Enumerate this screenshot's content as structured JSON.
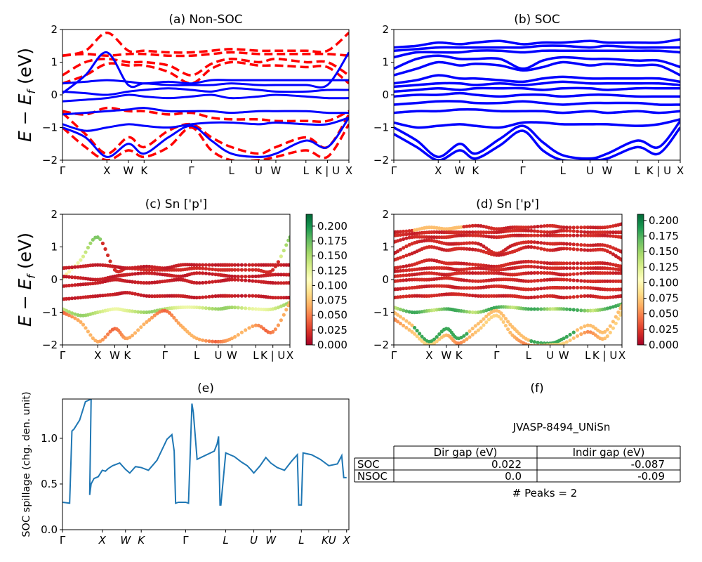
{
  "panels": {
    "a": {
      "title": "(a) Non-SOC",
      "ylabel": "E − E",
      "ylabel_sub": "f",
      "ylabel_tail": " (eV)",
      "yticks": [
        "2",
        "1",
        "0",
        "−1",
        "−2"
      ],
      "kpoints": [
        "Γ",
        "X",
        "W",
        "K",
        "Γ",
        "L",
        "U",
        "W",
        "L",
        "K | U",
        "X"
      ]
    },
    "b": {
      "title": "(b) SOC",
      "yticks": [
        "2",
        "1",
        "0",
        "−1",
        "−2"
      ],
      "kpoints": [
        "Γ",
        "X",
        "W",
        "K",
        "Γ",
        "L",
        "U",
        "W",
        "L",
        "K | U",
        "X"
      ]
    },
    "c": {
      "title": "(c)  Sn ['p']",
      "ylabel": "E − E",
      "ylabel_sub": "f",
      "ylabel_tail": " (eV)",
      "yticks": [
        "2",
        "1",
        "0",
        "−1",
        "−2"
      ],
      "kpoints": [
        "Γ",
        "X",
        "W",
        "K",
        "Γ",
        "L",
        "U",
        "W",
        "L",
        "K | U",
        "X"
      ],
      "colorbar_ticks": [
        "0.200",
        "0.175",
        "0.150",
        "0.125",
        "0.100",
        "0.075",
        "0.050",
        "0.025",
        "0.000"
      ]
    },
    "d": {
      "title": "(d) Sn ['p']",
      "yticks": [
        "2",
        "1",
        "0",
        "−1",
        "−2"
      ],
      "kpoints": [
        "Γ",
        "X",
        "W",
        "K",
        "Γ",
        "L",
        "U",
        "W",
        "L",
        "K | U",
        "X"
      ],
      "colorbar_ticks": [
        "0.200",
        "0.175",
        "0.150",
        "0.125",
        "0.100",
        "0.075",
        "0.050",
        "0.025",
        "0.000"
      ]
    },
    "e": {
      "title": "(e)",
      "ylabel": "SOC spillage (chg. den. unit)",
      "yticks": [
        "0.0",
        "0.5",
        "1.0"
      ],
      "kpoints": [
        "Γ",
        "X",
        "W",
        "K",
        "Γ",
        "L",
        "U",
        "W",
        "L",
        "KU",
        "X"
      ]
    },
    "f": {
      "title": "(f)",
      "material": "JVASP-8494_UNiSn",
      "table": {
        "headers": [
          "Dir gap (eV)",
          "Indir gap (eV)"
        ],
        "rows": [
          {
            "label": "SOC",
            "dir": "0.022",
            "indir": "-0.087"
          },
          {
            "label": "NSOC",
            "dir": "0.0",
            "indir": "-0.09"
          }
        ]
      },
      "peaks": "# Peaks = 2"
    }
  },
  "colors": {
    "nonsoc": "#ff0000",
    "soc": "#0000ff",
    "spillage": "#1f77b4",
    "cmap": [
      "#a50026",
      "#d73027",
      "#f46d43",
      "#fdae61",
      "#fee08b",
      "#ffffbf",
      "#d9ef8b",
      "#a6d96a",
      "#66bd63",
      "#1a9850",
      "#006837"
    ]
  },
  "chart_data": [
    {
      "type": "line",
      "title": "(a) Non-SOC",
      "ylabel": "E − E_f (eV)",
      "ylim": [
        -2,
        2
      ],
      "x_ticks": [
        "Γ",
        "X",
        "W",
        "K",
        "Γ",
        "L",
        "U",
        "W",
        "L",
        "K | U",
        "X"
      ],
      "x_tick_pos": [
        0,
        0.155,
        0.23,
        0.285,
        0.45,
        0.59,
        0.685,
        0.745,
        0.85,
        0.925,
        1.0
      ],
      "series": [
        {
          "style": "dashed",
          "color": "#ff0000",
          "x": [
            0,
            0.08,
            0.155,
            0.23,
            0.285,
            0.37,
            0.45,
            0.52,
            0.59,
            0.685,
            0.745,
            0.85,
            0.925,
            1.0
          ],
          "y": [
            1.2,
            1.35,
            1.9,
            1.35,
            1.35,
            1.3,
            1.3,
            1.35,
            1.4,
            1.35,
            1.35,
            1.35,
            1.35,
            1.9
          ]
        },
        {
          "style": "dashed",
          "color": "#ff0000",
          "x": [
            0,
            0.08,
            0.155,
            0.23,
            0.285,
            0.37,
            0.45,
            0.52,
            0.59,
            0.685,
            0.745,
            0.85,
            0.925,
            1.0
          ],
          "y": [
            1.2,
            1.25,
            1.2,
            1.25,
            1.25,
            1.2,
            1.2,
            1.25,
            1.3,
            1.25,
            1.25,
            1.25,
            1.25,
            1.2
          ]
        },
        {
          "style": "dashed",
          "color": "#ff0000",
          "x": [
            0,
            0.08,
            0.155,
            0.23,
            0.285,
            0.37,
            0.45,
            0.52,
            0.59,
            0.685,
            0.745,
            0.85,
            0.925,
            1.0
          ],
          "y": [
            0.6,
            1.0,
            1.1,
            1.0,
            1.0,
            0.9,
            0.6,
            0.95,
            1.1,
            1.0,
            1.1,
            1.0,
            1.0,
            0.6
          ]
        },
        {
          "style": "dashed",
          "color": "#ff0000",
          "x": [
            0,
            0.08,
            0.155,
            0.23,
            0.285,
            0.37,
            0.45,
            0.52,
            0.59,
            0.685,
            0.745,
            0.85,
            0.925,
            1.0
          ],
          "y": [
            0.35,
            0.6,
            0.95,
            0.9,
            0.9,
            0.7,
            0.35,
            0.8,
            1.0,
            0.9,
            0.9,
            0.85,
            0.85,
            0.35
          ]
        },
        {
          "style": "dashed",
          "color": "#ff0000",
          "x": [
            0,
            0.08,
            0.155,
            0.23,
            0.285,
            0.37,
            0.45,
            0.52,
            0.59,
            0.685,
            0.745,
            0.85,
            0.925,
            1.0
          ],
          "y": [
            -0.5,
            -0.6,
            -0.4,
            -0.5,
            -0.5,
            -0.6,
            -0.55,
            -0.7,
            -0.75,
            -0.75,
            -0.8,
            -0.8,
            -0.8,
            -0.5
          ]
        },
        {
          "style": "dashed",
          "color": "#ff0000",
          "x": [
            0,
            0.08,
            0.155,
            0.23,
            0.285,
            0.37,
            0.45,
            0.52,
            0.59,
            0.685,
            0.745,
            0.85,
            0.925,
            1.0
          ],
          "y": [
            -0.55,
            -1.2,
            -1.8,
            -1.3,
            -1.6,
            -1.1,
            -0.9,
            -1.3,
            -1.6,
            -1.8,
            -1.6,
            -1.3,
            -1.6,
            -0.6
          ]
        },
        {
          "style": "dashed",
          "color": "#ff0000",
          "x": [
            0,
            0.08,
            0.155,
            0.23,
            0.285,
            0.37,
            0.45,
            0.52,
            0.59,
            0.685,
            0.745,
            0.85,
            0.925,
            1.0
          ],
          "y": [
            -1.0,
            -1.6,
            -2.0,
            -1.7,
            -1.9,
            -1.6,
            -1.0,
            -1.7,
            -2.0,
            -2.0,
            -1.9,
            -1.7,
            -1.9,
            -0.9
          ]
        },
        {
          "style": "solid",
          "color": "#0000ff",
          "x": [
            0,
            0.08,
            0.155,
            0.23,
            0.285,
            0.37,
            0.45,
            0.52,
            0.59,
            0.685,
            0.745,
            0.85,
            0.925,
            1.0
          ],
          "y": [
            0.05,
            0.6,
            1.3,
            0.3,
            0.35,
            0.3,
            0.3,
            0.3,
            0.35,
            0.3,
            0.3,
            0.3,
            0.3,
            1.3
          ]
        },
        {
          "style": "solid",
          "color": "#0000ff",
          "x": [
            0,
            0.08,
            0.155,
            0.23,
            0.285,
            0.37,
            0.45,
            0.52,
            0.59,
            0.685,
            0.745,
            0.85,
            0.925,
            1.0
          ],
          "y": [
            0.35,
            0.4,
            0.45,
            0.4,
            0.35,
            0.4,
            0.35,
            0.45,
            0.45,
            0.45,
            0.45,
            0.45,
            0.45,
            0.45
          ]
        },
        {
          "style": "solid",
          "color": "#0000ff",
          "x": [
            0,
            0.08,
            0.155,
            0.23,
            0.285,
            0.37,
            0.45,
            0.52,
            0.59,
            0.685,
            0.745,
            0.85,
            0.925,
            1.0
          ],
          "y": [
            0.1,
            0.05,
            0.0,
            0.1,
            0.15,
            0.2,
            0.15,
            0.1,
            0.2,
            0.15,
            0.1,
            0.1,
            0.15,
            0.15
          ]
        },
        {
          "style": "solid",
          "color": "#0000ff",
          "x": [
            0,
            0.08,
            0.155,
            0.23,
            0.285,
            0.37,
            0.45,
            0.52,
            0.59,
            0.685,
            0.745,
            0.85,
            0.925,
            1.0
          ],
          "y": [
            -0.2,
            -0.15,
            -0.1,
            0.0,
            -0.05,
            -0.1,
            -0.05,
            0.0,
            -0.1,
            -0.05,
            0.0,
            -0.05,
            -0.1,
            -0.1
          ]
        },
        {
          "style": "solid",
          "color": "#0000ff",
          "x": [
            0,
            0.08,
            0.155,
            0.23,
            0.285,
            0.37,
            0.45,
            0.52,
            0.59,
            0.685,
            0.745,
            0.85,
            0.925,
            1.0
          ],
          "y": [
            -0.6,
            -0.55,
            -0.5,
            -0.45,
            -0.4,
            -0.5,
            -0.5,
            -0.5,
            -0.55,
            -0.5,
            -0.5,
            -0.5,
            -0.55,
            -0.55
          ]
        },
        {
          "style": "solid",
          "color": "#0000ff",
          "x": [
            0,
            0.08,
            0.155,
            0.23,
            0.285,
            0.37,
            0.45,
            0.52,
            0.59,
            0.685,
            0.745,
            0.85,
            0.925,
            1.0
          ],
          "y": [
            -0.9,
            -1.1,
            -1.0,
            -0.9,
            -0.95,
            -1.0,
            -0.9,
            -0.85,
            -0.85,
            -0.9,
            -0.85,
            -0.9,
            -0.9,
            -0.7
          ]
        },
        {
          "style": "solid",
          "color": "#0000ff",
          "x": [
            0,
            0.08,
            0.155,
            0.23,
            0.285,
            0.37,
            0.45,
            0.52,
            0.59,
            0.685,
            0.745,
            0.85,
            0.925,
            1.0
          ],
          "y": [
            -1.0,
            -1.3,
            -1.9,
            -1.5,
            -1.8,
            -1.3,
            -0.95,
            -1.4,
            -1.8,
            -1.9,
            -1.8,
            -1.4,
            -1.6,
            -0.7
          ]
        }
      ]
    },
    {
      "type": "line",
      "title": "(b) SOC",
      "ylim": [
        -2,
        2
      ],
      "x_ticks": [
        "Γ",
        "X",
        "W",
        "K",
        "Γ",
        "L",
        "U",
        "W",
        "L",
        "K | U",
        "X"
      ],
      "x_tick_pos": [
        0,
        0.155,
        0.23,
        0.285,
        0.45,
        0.59,
        0.685,
        0.745,
        0.85,
        0.925,
        1.0
      ],
      "series_y": [
        [
          1.45,
          1.5,
          1.6,
          1.55,
          1.6,
          1.65,
          1.55,
          1.6,
          1.6,
          1.65,
          1.6,
          1.6,
          1.6,
          1.7
        ],
        [
          1.35,
          1.4,
          1.45,
          1.45,
          1.45,
          1.45,
          1.45,
          1.5,
          1.5,
          1.45,
          1.5,
          1.45,
          1.45,
          1.45
        ],
        [
          1.15,
          1.3,
          1.3,
          1.3,
          1.35,
          1.35,
          1.3,
          1.35,
          1.35,
          1.35,
          1.35,
          1.35,
          1.35,
          1.3
        ],
        [
          0.8,
          1.1,
          1.2,
          1.1,
          1.1,
          1.1,
          0.8,
          1.05,
          1.15,
          1.1,
          1.1,
          1.05,
          1.05,
          0.85
        ],
        [
          0.6,
          0.8,
          1.0,
          0.9,
          0.95,
          0.9,
          0.75,
          0.85,
          1.0,
          0.9,
          0.95,
          0.9,
          0.9,
          0.6
        ],
        [
          0.35,
          0.45,
          0.6,
          0.5,
          0.5,
          0.45,
          0.4,
          0.5,
          0.55,
          0.5,
          0.5,
          0.5,
          0.5,
          0.4
        ],
        [
          0.25,
          0.3,
          0.35,
          0.35,
          0.3,
          0.35,
          0.3,
          0.35,
          0.4,
          0.35,
          0.35,
          0.35,
          0.35,
          0.3
        ],
        [
          0.1,
          0.15,
          0.2,
          0.15,
          0.2,
          0.2,
          0.2,
          0.15,
          0.2,
          0.2,
          0.15,
          0.2,
          0.2,
          0.2
        ],
        [
          -0.05,
          0.0,
          0.0,
          0.05,
          0.0,
          -0.05,
          0.0,
          0.0,
          -0.05,
          0.0,
          0.0,
          -0.05,
          -0.05,
          -0.05
        ],
        [
          -0.3,
          -0.25,
          -0.2,
          -0.2,
          -0.25,
          -0.25,
          -0.2,
          -0.25,
          -0.3,
          -0.25,
          -0.25,
          -0.25,
          -0.3,
          -0.3
        ],
        [
          -0.55,
          -0.5,
          -0.5,
          -0.45,
          -0.45,
          -0.5,
          -0.5,
          -0.5,
          -0.55,
          -0.5,
          -0.55,
          -0.5,
          -0.55,
          -0.5
        ],
        [
          -0.85,
          -1.0,
          -0.95,
          -0.9,
          -0.95,
          -1.0,
          -0.85,
          -0.85,
          -0.9,
          -0.9,
          -0.9,
          -0.95,
          -0.9,
          -0.75
        ],
        [
          -1.0,
          -1.4,
          -1.9,
          -1.5,
          -1.8,
          -1.35,
          -0.95,
          -1.45,
          -1.85,
          -1.95,
          -1.8,
          -1.4,
          -1.6,
          -0.8
        ],
        [
          -1.2,
          -1.6,
          -2.0,
          -1.7,
          -1.95,
          -1.55,
          -1.1,
          -1.7,
          -2.0,
          -2.0,
          -1.95,
          -1.6,
          -1.8,
          -1.0
        ]
      ]
    },
    {
      "type": "scatter",
      "title": "(c)  Sn ['p']",
      "ylim": [
        -2,
        2
      ],
      "colorbar_range": [
        0.0,
        0.22
      ]
    },
    {
      "type": "scatter",
      "title": "(d) Sn ['p']",
      "ylim": [
        -2,
        2
      ],
      "colorbar_range": [
        0.0,
        0.21
      ]
    },
    {
      "type": "line",
      "title": "(e)",
      "ylabel": "SOC spillage (chg. den. unit)",
      "ylim": [
        0,
        1.43
      ],
      "x_ticks": [
        "Γ",
        "X",
        "W",
        "K",
        "Γ",
        "L",
        "U",
        "W",
        "L",
        "KU",
        "X"
      ],
      "x_tick_pos": [
        0,
        0.139,
        0.22,
        0.275,
        0.43,
        0.57,
        0.668,
        0.727,
        0.834,
        0.93,
        0.992
      ],
      "x": [
        0,
        0.025,
        0.033,
        0.04,
        0.06,
        0.08,
        0.1,
        0.095,
        0.1,
        0.11,
        0.125,
        0.139,
        0.15,
        0.16,
        0.175,
        0.2,
        0.22,
        0.235,
        0.255,
        0.275,
        0.3,
        0.33,
        0.365,
        0.382,
        0.39,
        0.395,
        0.405,
        0.43,
        0.44,
        0.452,
        0.457,
        0.47,
        0.49,
        0.53,
        0.54,
        0.545,
        0.55,
        0.553,
        0.57,
        0.6,
        0.625,
        0.645,
        0.66,
        0.668,
        0.69,
        0.71,
        0.727,
        0.75,
        0.775,
        0.8,
        0.82,
        0.825,
        0.834,
        0.84,
        0.87,
        0.9,
        0.93,
        0.96,
        0.975,
        0.982,
        0.992
      ],
      "y": [
        0.3,
        0.29,
        1.08,
        1.1,
        1.2,
        1.4,
        1.43,
        0.38,
        0.5,
        0.56,
        0.58,
        0.65,
        0.64,
        0.67,
        0.7,
        0.73,
        0.66,
        0.62,
        0.69,
        0.68,
        0.65,
        0.76,
        0.99,
        1.04,
        0.86,
        0.29,
        0.3,
        0.3,
        0.29,
        1.38,
        1.28,
        0.77,
        0.8,
        0.86,
        0.94,
        1.02,
        0.27,
        0.27,
        0.84,
        0.8,
        0.74,
        0.7,
        0.65,
        0.62,
        0.7,
        0.79,
        0.73,
        0.68,
        0.65,
        0.75,
        0.82,
        0.27,
        0.27,
        0.84,
        0.82,
        0.77,
        0.7,
        0.72,
        0.81,
        0.57,
        0.57
      ]
    },
    {
      "type": "table",
      "title": "(f)",
      "columns": [
        "",
        "Dir gap (eV)",
        "Indir gap (eV)"
      ],
      "rows": [
        [
          "SOC",
          "0.022",
          "-0.087"
        ],
        [
          "NSOC",
          "0.0",
          "-0.09"
        ]
      ]
    }
  ]
}
